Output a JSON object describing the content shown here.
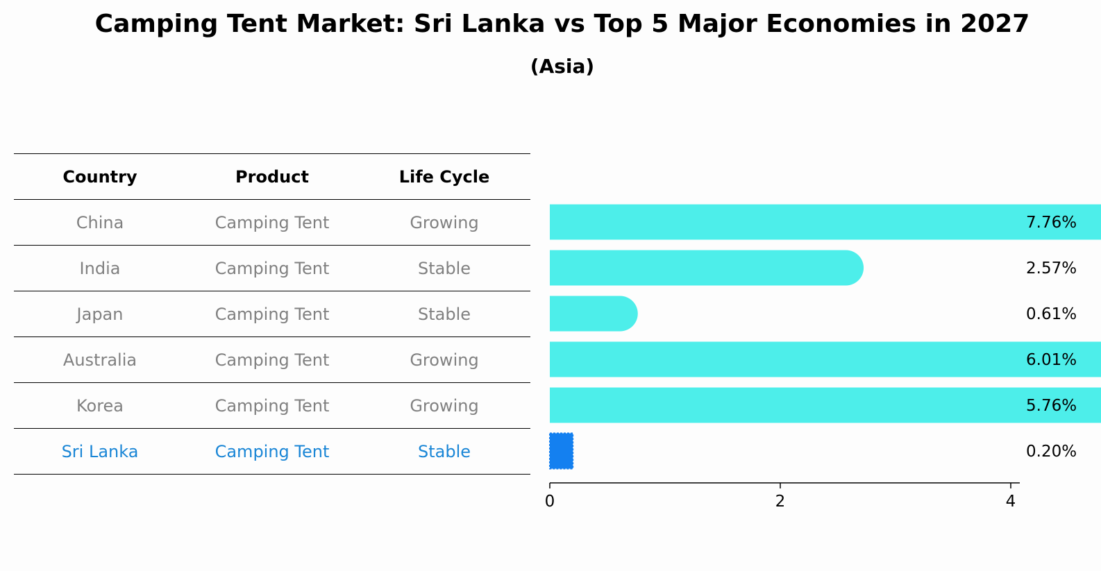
{
  "header": {
    "title": "Camping Tent Market: Sri Lanka vs Top 5 Major Economies in 2027",
    "subtitle": "(Asia)"
  },
  "table": {
    "columns": [
      "Country",
      "Product",
      "Life Cycle"
    ],
    "rows": [
      {
        "country": "China",
        "product": "Camping Tent",
        "life_cycle": "Growing",
        "highlight": false
      },
      {
        "country": "India",
        "product": "Camping Tent",
        "life_cycle": "Stable",
        "highlight": false
      },
      {
        "country": "Japan",
        "product": "Camping Tent",
        "life_cycle": "Stable",
        "highlight": false
      },
      {
        "country": "Australia",
        "product": "Camping Tent",
        "life_cycle": "Growing",
        "highlight": false
      },
      {
        "country": "Korea",
        "product": "Camping Tent",
        "life_cycle": "Growing",
        "highlight": false
      },
      {
        "country": "Sri Lanka",
        "product": "Camping Tent",
        "life_cycle": "Stable",
        "highlight": true
      }
    ]
  },
  "chart_data": {
    "type": "bar",
    "orientation": "horizontal",
    "categories": [
      "China",
      "India",
      "Japan",
      "Australia",
      "Korea",
      "Sri Lanka"
    ],
    "values": [
      7.76,
      2.57,
      0.61,
      6.01,
      5.76,
      0.2
    ],
    "value_labels": [
      "7.76%",
      "2.57%",
      "0.61%",
      "6.01%",
      "5.76%",
      "0.20%"
    ],
    "xlim": [
      0,
      8.15
    ],
    "xticks": [
      "0",
      "2",
      "4",
      "6",
      "8"
    ],
    "xlabel": "",
    "ylabel": "",
    "grid": false,
    "colors": {
      "bar": "#4deeea",
      "highlight_bar": "#1480f0",
      "table_text": "#808080",
      "highlight_text": "#1a86d6"
    }
  }
}
